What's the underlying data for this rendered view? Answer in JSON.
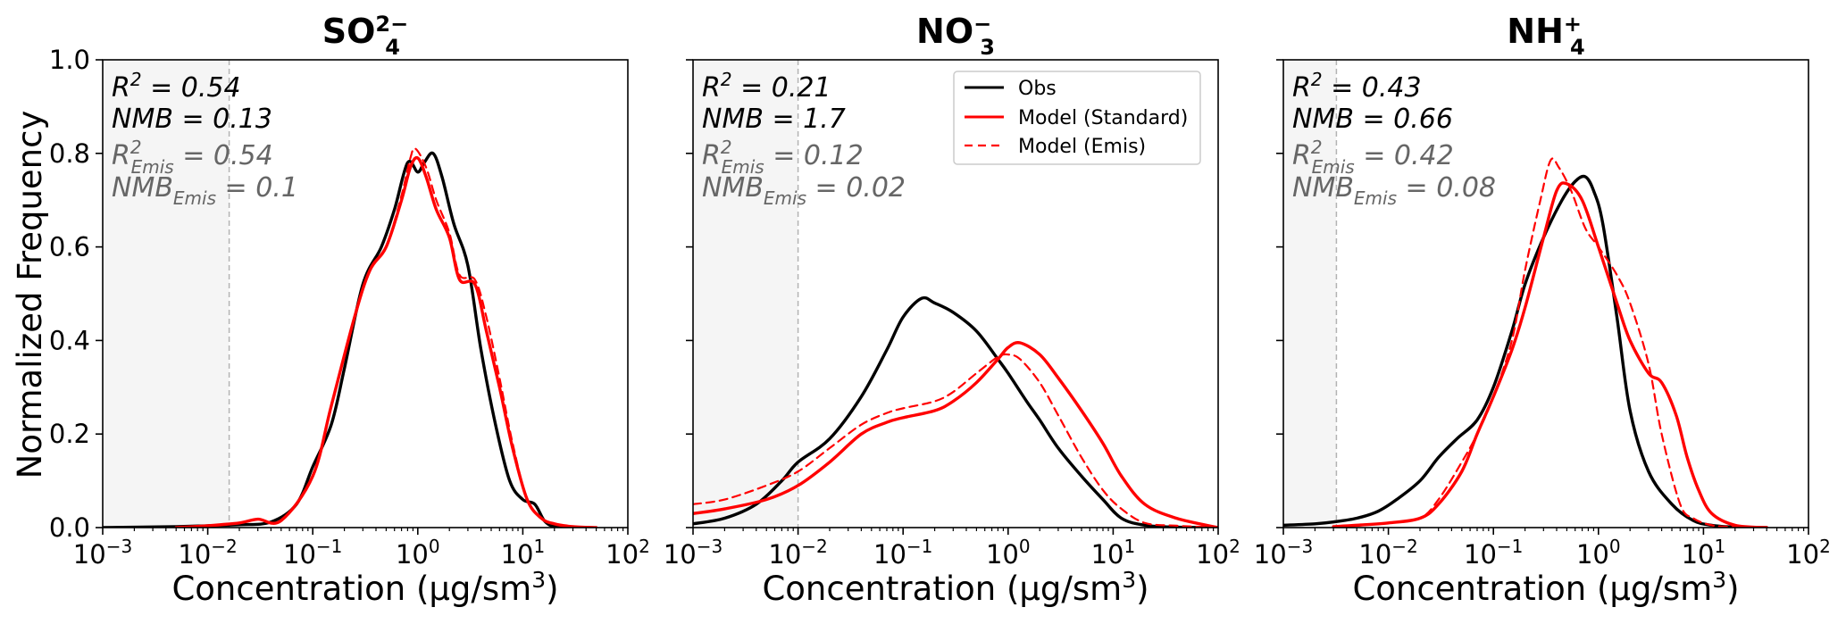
{
  "figure": {
    "ylabel": "Normalized Frequency",
    "xlabel_prefix": "Concentration (μg/sm",
    "xlabel_sup": "3",
    "xlabel_suffix": ")",
    "colors": {
      "obs": "#000000",
      "model_standard": "#ff0000",
      "model_emis": "#ff0000",
      "shade": "#f5f5f5",
      "emis_text": "#666666",
      "threshold": "#b3b3b3"
    },
    "legend": {
      "location": "upper-right of middle panel",
      "entries": [
        {
          "label": "Obs",
          "color": "#000000",
          "style": "solid"
        },
        {
          "label": "Model (Standard)",
          "color": "#ff0000",
          "style": "solid"
        },
        {
          "label": "Model (Emis)",
          "color": "#ff0000",
          "style": "dashed"
        }
      ]
    }
  },
  "chart_data": [
    {
      "type": "line",
      "title": {
        "base": "SO",
        "sub": "4",
        "sup": "2−"
      },
      "xscale": "log",
      "xlim": [
        0.001,
        100
      ],
      "ylim": [
        0.0,
        1.0
      ],
      "xticks": [
        {
          "base": "10",
          "exp": "−3"
        },
        {
          "base": "10",
          "exp": "−2"
        },
        {
          "base": "10",
          "exp": "−1"
        },
        {
          "base": "10",
          "exp": "0"
        },
        {
          "base": "10",
          "exp": "1"
        },
        {
          "base": "10",
          "exp": "2"
        }
      ],
      "yticks": [
        "0.0",
        "0.2",
        "0.4",
        "0.6",
        "0.8",
        "1.0"
      ],
      "threshold_x": 0.016,
      "stats": {
        "r2_label": "R",
        "r2_sup": "2",
        "r2_value": " = 0.54",
        "nmb": "NMB = 0.13",
        "r2e_label": "R",
        "r2e_sup": "2",
        "r2e_sub": "Emis",
        "r2e_value": " = 0.54",
        "nmbe_label": "NMB",
        "nmbe_sub": "Emis",
        "nmbe_value": " = 0.1"
      },
      "series": [
        {
          "name": "Obs",
          "x": [
            0.001,
            0.005,
            0.01,
            0.02,
            0.04,
            0.07,
            0.1,
            0.15,
            0.2,
            0.3,
            0.45,
            0.6,
            0.8,
            1.0,
            1.15,
            1.4,
            1.7,
            2.2,
            3.0,
            4.0,
            5.5,
            7.5,
            10,
            13,
            16,
            20,
            30
          ],
          "y": [
            0.0,
            0.002,
            0.004,
            0.006,
            0.012,
            0.05,
            0.13,
            0.22,
            0.34,
            0.52,
            0.6,
            0.68,
            0.78,
            0.76,
            0.78,
            0.8,
            0.75,
            0.65,
            0.56,
            0.38,
            0.22,
            0.1,
            0.06,
            0.05,
            0.015,
            0.002,
            0.0
          ]
        },
        {
          "name": "Model (Standard)",
          "x": [
            0.005,
            0.01,
            0.02,
            0.03,
            0.05,
            0.1,
            0.15,
            0.25,
            0.35,
            0.5,
            0.7,
            0.85,
            1.0,
            1.2,
            1.5,
            2.0,
            2.5,
            3.5,
            4.5,
            6.0,
            8.0,
            11,
            15,
            20,
            30,
            50
          ],
          "y": [
            0.0,
            0.004,
            0.01,
            0.018,
            0.015,
            0.11,
            0.26,
            0.45,
            0.55,
            0.6,
            0.7,
            0.77,
            0.79,
            0.75,
            0.68,
            0.62,
            0.53,
            0.52,
            0.42,
            0.3,
            0.17,
            0.06,
            0.02,
            0.008,
            0.002,
            0.0
          ]
        },
        {
          "name": "Model (Emis)",
          "x": [
            0.005,
            0.01,
            0.02,
            0.03,
            0.05,
            0.1,
            0.15,
            0.25,
            0.35,
            0.5,
            0.7,
            0.85,
            0.95,
            1.2,
            1.5,
            2.0,
            2.5,
            3.5,
            4.5,
            6.0,
            8.0,
            11,
            15,
            20,
            30,
            50
          ],
          "y": [
            0.0,
            0.004,
            0.01,
            0.018,
            0.015,
            0.11,
            0.26,
            0.45,
            0.55,
            0.6,
            0.71,
            0.79,
            0.81,
            0.77,
            0.7,
            0.63,
            0.54,
            0.53,
            0.45,
            0.32,
            0.18,
            0.06,
            0.02,
            0.008,
            0.002,
            0.0
          ]
        }
      ]
    },
    {
      "type": "line",
      "title": {
        "base": "NO",
        "sub": "3",
        "sup": "−"
      },
      "xscale": "log",
      "xlim": [
        0.001,
        100
      ],
      "ylim": [
        0.0,
        1.0
      ],
      "xticks": [
        {
          "base": "10",
          "exp": "−3"
        },
        {
          "base": "10",
          "exp": "−2"
        },
        {
          "base": "10",
          "exp": "−1"
        },
        {
          "base": "10",
          "exp": "0"
        },
        {
          "base": "10",
          "exp": "1"
        },
        {
          "base": "10",
          "exp": "2"
        }
      ],
      "yticks": [
        "0.0",
        "0.2",
        "0.4",
        "0.6",
        "0.8",
        "1.0"
      ],
      "threshold_x": 0.01,
      "stats": {
        "r2_label": "R",
        "r2_sup": "2",
        "r2_value": " = 0.21",
        "nmb": "NMB = 1.7",
        "r2e_label": "R",
        "r2e_sup": "2",
        "r2e_sub": "Emis",
        "r2e_value": " = 0.12",
        "nmbe_label": "NMB",
        "nmbe_sub": "Emis",
        "nmbe_value": " = 0.02"
      },
      "series": [
        {
          "name": "Obs",
          "x": [
            0.001,
            0.002,
            0.004,
            0.007,
            0.01,
            0.02,
            0.04,
            0.07,
            0.1,
            0.15,
            0.2,
            0.3,
            0.5,
            0.8,
            1.0,
            1.5,
            2.0,
            3.0,
            5.0,
            8.0,
            12,
            20,
            40,
            100
          ],
          "y": [
            0.008,
            0.02,
            0.05,
            0.1,
            0.14,
            0.19,
            0.28,
            0.38,
            0.45,
            0.49,
            0.48,
            0.46,
            0.42,
            0.36,
            0.33,
            0.27,
            0.23,
            0.17,
            0.11,
            0.06,
            0.02,
            0.005,
            0.001,
            0.0
          ]
        },
        {
          "name": "Model (Standard)",
          "x": [
            0.001,
            0.002,
            0.005,
            0.01,
            0.02,
            0.04,
            0.07,
            0.1,
            0.2,
            0.3,
            0.5,
            0.8,
            1.0,
            1.3,
            2.0,
            3.0,
            5.0,
            8.0,
            12,
            20,
            40,
            100
          ],
          "y": [
            0.03,
            0.04,
            0.06,
            0.09,
            0.14,
            0.2,
            0.225,
            0.235,
            0.25,
            0.27,
            0.31,
            0.36,
            0.385,
            0.395,
            0.37,
            0.32,
            0.25,
            0.18,
            0.11,
            0.05,
            0.02,
            0.0
          ]
        },
        {
          "name": "Model (Emis)",
          "x": [
            0.001,
            0.002,
            0.005,
            0.01,
            0.02,
            0.04,
            0.07,
            0.1,
            0.2,
            0.3,
            0.5,
            0.8,
            1.0,
            1.3,
            2.0,
            3.0,
            5.0,
            8.0,
            12,
            20,
            40,
            100
          ],
          "y": [
            0.05,
            0.06,
            0.09,
            0.12,
            0.17,
            0.22,
            0.245,
            0.255,
            0.27,
            0.29,
            0.33,
            0.365,
            0.37,
            0.36,
            0.31,
            0.24,
            0.15,
            0.08,
            0.04,
            0.01,
            0.004,
            0.0
          ]
        }
      ]
    },
    {
      "type": "line",
      "title": {
        "base": "NH",
        "sub": "4",
        "sup": "+"
      },
      "xscale": "log",
      "xlim": [
        0.001,
        100
      ],
      "ylim": [
        0.0,
        1.0
      ],
      "xticks": [
        {
          "base": "10",
          "exp": "−3"
        },
        {
          "base": "10",
          "exp": "−2"
        },
        {
          "base": "10",
          "exp": "−1"
        },
        {
          "base": "10",
          "exp": "0"
        },
        {
          "base": "10",
          "exp": "1"
        },
        {
          "base": "10",
          "exp": "2"
        }
      ],
      "yticks": [
        "0.0",
        "0.2",
        "0.4",
        "0.6",
        "0.8",
        "1.0"
      ],
      "threshold_x": 0.0032,
      "stats": {
        "r2_label": "R",
        "r2_sup": "2",
        "r2_value": " = 0.43",
        "nmb": "NMB = 0.66",
        "r2e_label": "R",
        "r2e_sup": "2",
        "r2e_sub": "Emis",
        "r2e_value": " = 0.42",
        "nmbe_label": "NMB",
        "nmbe_sub": "Emis",
        "nmbe_value": " = 0.08"
      },
      "series": [
        {
          "name": "Obs",
          "x": [
            0.001,
            0.002,
            0.003,
            0.005,
            0.008,
            0.012,
            0.02,
            0.03,
            0.045,
            0.07,
            0.1,
            0.15,
            0.2,
            0.3,
            0.45,
            0.6,
            0.75,
            0.9,
            1.1,
            1.5,
            2.0,
            3.0,
            5.0,
            8.0,
            12,
            20,
            40
          ],
          "y": [
            0.005,
            0.008,
            0.012,
            0.02,
            0.035,
            0.06,
            0.1,
            0.15,
            0.19,
            0.23,
            0.3,
            0.42,
            0.52,
            0.62,
            0.7,
            0.74,
            0.75,
            0.72,
            0.65,
            0.45,
            0.25,
            0.12,
            0.05,
            0.015,
            0.005,
            0.001,
            0.0
          ]
        },
        {
          "name": "Model (Standard)",
          "x": [
            0.003,
            0.005,
            0.01,
            0.02,
            0.03,
            0.05,
            0.07,
            0.1,
            0.15,
            0.2,
            0.3,
            0.4,
            0.5,
            0.7,
            1.0,
            1.5,
            2.0,
            3.0,
            4.0,
            5.5,
            7.0,
            9.0,
            12,
            20,
            40
          ],
          "y": [
            0.002,
            0.005,
            0.01,
            0.02,
            0.05,
            0.12,
            0.2,
            0.28,
            0.38,
            0.47,
            0.62,
            0.72,
            0.735,
            0.7,
            0.6,
            0.48,
            0.4,
            0.33,
            0.31,
            0.24,
            0.15,
            0.08,
            0.03,
            0.005,
            0.0
          ]
        },
        {
          "name": "Model (Emis)",
          "x": [
            0.003,
            0.005,
            0.01,
            0.02,
            0.03,
            0.05,
            0.07,
            0.1,
            0.15,
            0.2,
            0.28,
            0.35,
            0.42,
            0.55,
            0.75,
            1.0,
            1.5,
            2.0,
            3.0,
            4.0,
            6.0,
            8.0,
            12,
            20,
            40
          ],
          "y": [
            0.002,
            0.005,
            0.01,
            0.02,
            0.06,
            0.14,
            0.2,
            0.28,
            0.4,
            0.55,
            0.7,
            0.785,
            0.77,
            0.72,
            0.64,
            0.6,
            0.54,
            0.48,
            0.35,
            0.2,
            0.05,
            0.02,
            0.005,
            0.001,
            0.0
          ]
        }
      ]
    }
  ]
}
